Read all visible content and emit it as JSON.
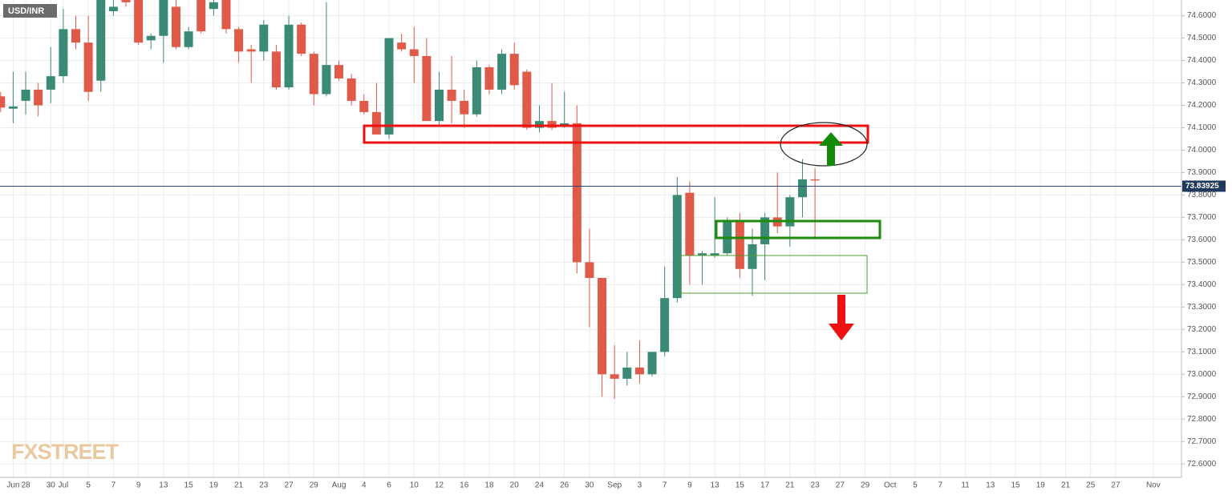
{
  "chart_data": {
    "type": "candlestick",
    "title": "USD/INR",
    "watermark": "FXSTREET",
    "up_color": "#3b8a75",
    "down_color": "#e05a49",
    "grid": true,
    "last_price": 73.83925,
    "ylim": [
      72.54,
      74.67
    ],
    "yticks": [
      {
        "value": 72.6,
        "label": "72.6000"
      },
      {
        "value": 72.7,
        "label": "72.7000"
      },
      {
        "value": 72.8,
        "label": "72.8000"
      },
      {
        "value": 72.9,
        "label": "72.9000"
      },
      {
        "value": 73.0,
        "label": "73.0000"
      },
      {
        "value": 73.1,
        "label": "73.1000"
      },
      {
        "value": 73.2,
        "label": "73.2000"
      },
      {
        "value": 73.3,
        "label": "73.3000"
      },
      {
        "value": 73.4,
        "label": "73.4000"
      },
      {
        "value": 73.5,
        "label": "73.5000"
      },
      {
        "value": 73.6,
        "label": "73.6000"
      },
      {
        "value": 73.7,
        "label": "73.7000"
      },
      {
        "value": 73.8,
        "label": "73.8000"
      },
      {
        "value": 73.9,
        "label": "73.9000"
      },
      {
        "value": 74.0,
        "label": "74.0000"
      },
      {
        "value": 74.1,
        "label": "74.1000"
      },
      {
        "value": 74.2,
        "label": "74.2000"
      },
      {
        "value": 74.3,
        "label": "74.3000"
      },
      {
        "value": 74.4,
        "label": "74.4000"
      },
      {
        "value": 74.5,
        "label": "74.5000"
      },
      {
        "value": 74.6,
        "label": "74.6000"
      }
    ],
    "categories": [
      null,
      "Jun",
      "28",
      null,
      "30",
      "Jul",
      null,
      "5",
      null,
      "7",
      null,
      "9",
      null,
      "13",
      null,
      "15",
      null,
      "19",
      null,
      "21",
      null,
      "23",
      null,
      "27",
      null,
      "29",
      null,
      "Aug",
      null,
      "4",
      null,
      "6",
      null,
      "10",
      null,
      "12",
      null,
      "16",
      null,
      "18",
      null,
      "20",
      null,
      "24",
      null,
      "26",
      null,
      "30",
      null,
      "Sep",
      null,
      "3",
      null,
      "7",
      null,
      "9",
      null,
      "13",
      null,
      "15",
      null,
      "17",
      null,
      "21",
      null,
      "23",
      null,
      "27",
      null,
      "29",
      null,
      "Oct",
      null,
      "5",
      null,
      "7",
      null,
      "11",
      null,
      "13",
      null,
      "15",
      null,
      "19",
      null,
      "21",
      null,
      "25",
      null,
      "27",
      null,
      null,
      "Nov"
    ],
    "open": [
      74.24,
      74.185,
      74.22,
      74.27,
      74.27,
      74.33,
      74.54,
      74.48,
      74.31,
      74.62,
      74.72,
      74.7,
      74.49,
      74.51,
      74.64,
      74.46,
      74.67,
      74.63,
      74.7,
      74.54,
      74.45,
      74.44,
      74.44,
      74.28,
      74.56,
      74.43,
      74.25,
      74.38,
      74.32,
      74.22,
      74.17,
      74.07,
      74.48,
      74.45,
      74.42,
      74.13,
      74.27,
      74.22,
      74.16,
      74.37,
      74.27,
      74.43,
      74.35,
      74.1,
      74.13,
      74.11,
      74.12,
      73.5,
      73.43,
      73.0,
      72.98,
      73.03,
      73.0,
      73.1,
      73.34,
      73.81,
      73.53,
      73.53,
      73.54,
      73.68,
      73.47,
      73.58,
      73.7,
      73.66,
      73.79,
      73.87,
      null,
      null,
      null,
      null,
      null,
      null,
      null,
      null,
      null,
      null,
      null,
      null,
      null,
      null,
      null,
      null,
      null,
      null,
      null,
      null,
      null,
      null,
      null,
      null,
      null,
      null,
      null
    ],
    "high": [
      74.26,
      74.35,
      74.35,
      74.3,
      74.46,
      74.63,
      74.6,
      74.6,
      74.67,
      74.67,
      74.75,
      74.72,
      74.52,
      74.7,
      74.67,
      74.55,
      74.7,
      74.67,
      74.72,
      74.55,
      74.47,
      74.58,
      74.47,
      74.6,
      74.57,
      74.44,
      74.66,
      74.4,
      74.34,
      74.25,
      74.3,
      74.5,
      74.52,
      74.55,
      74.5,
      74.35,
      74.42,
      74.27,
      74.4,
      74.38,
      74.45,
      74.48,
      74.36,
      74.2,
      74.3,
      74.26,
      74.2,
      73.65,
      73.43,
      73.13,
      73.1,
      73.15,
      73.1,
      73.48,
      73.88,
      73.86,
      73.55,
      73.79,
      73.7,
      73.72,
      73.65,
      73.72,
      73.9,
      73.8,
      73.96,
      73.92,
      null,
      null,
      null,
      null,
      null,
      null,
      null,
      null,
      null,
      null,
      null,
      null,
      null,
      null,
      null,
      null,
      null,
      null,
      null,
      null,
      null,
      null,
      null,
      null,
      null,
      null,
      null
    ],
    "low": [
      74.17,
      74.12,
      74.16,
      74.15,
      74.21,
      74.3,
      74.45,
      74.22,
      74.26,
      74.6,
      74.64,
      74.47,
      74.45,
      74.39,
      74.45,
      74.45,
      74.52,
      74.6,
      74.52,
      74.39,
      74.3,
      74.4,
      74.27,
      74.27,
      74.42,
      74.2,
      74.24,
      74.31,
      74.2,
      74.16,
      74.07,
      74.05,
      74.44,
      74.3,
      74.13,
      74.11,
      74.12,
      74.1,
      74.15,
      74.25,
      74.25,
      74.27,
      74.09,
      74.08,
      74.09,
      74.1,
      73.45,
      73.21,
      72.9,
      72.89,
      72.95,
      72.96,
      72.99,
      73.08,
      73.32,
      73.4,
      73.4,
      73.52,
      73.53,
      73.43,
      73.35,
      73.42,
      73.63,
      73.57,
      73.7,
      73.61,
      null,
      null,
      null,
      null,
      null,
      null,
      null,
      null,
      null,
      null,
      null,
      null,
      null,
      null,
      null,
      null,
      null,
      null,
      null,
      null,
      null,
      null,
      null,
      null,
      null,
      null,
      null
    ],
    "close": [
      74.19,
      74.195,
      74.27,
      74.2,
      74.33,
      74.54,
      74.48,
      74.26,
      74.67,
      74.64,
      74.66,
      74.48,
      74.51,
      74.68,
      74.46,
      74.53,
      74.53,
      74.66,
      74.54,
      74.44,
      74.44,
      74.56,
      74.28,
      74.56,
      74.43,
      74.25,
      74.38,
      74.32,
      74.22,
      74.17,
      74.07,
      74.5,
      74.45,
      74.42,
      74.13,
      74.27,
      74.22,
      74.16,
      74.37,
      74.27,
      74.43,
      74.29,
      74.1,
      74.13,
      74.1,
      74.12,
      73.5,
      73.43,
      73.0,
      72.98,
      73.03,
      73.0,
      73.1,
      73.34,
      73.8,
      73.53,
      73.54,
      73.54,
      73.68,
      73.47,
      73.58,
      73.7,
      73.66,
      73.79,
      73.87,
      73.865,
      null,
      null,
      null,
      null,
      null,
      null,
      null,
      null,
      null,
      null,
      null,
      null,
      null,
      null,
      null,
      null,
      null,
      null,
      null,
      null,
      null,
      null,
      null,
      null,
      null,
      null,
      null
    ]
  }
}
